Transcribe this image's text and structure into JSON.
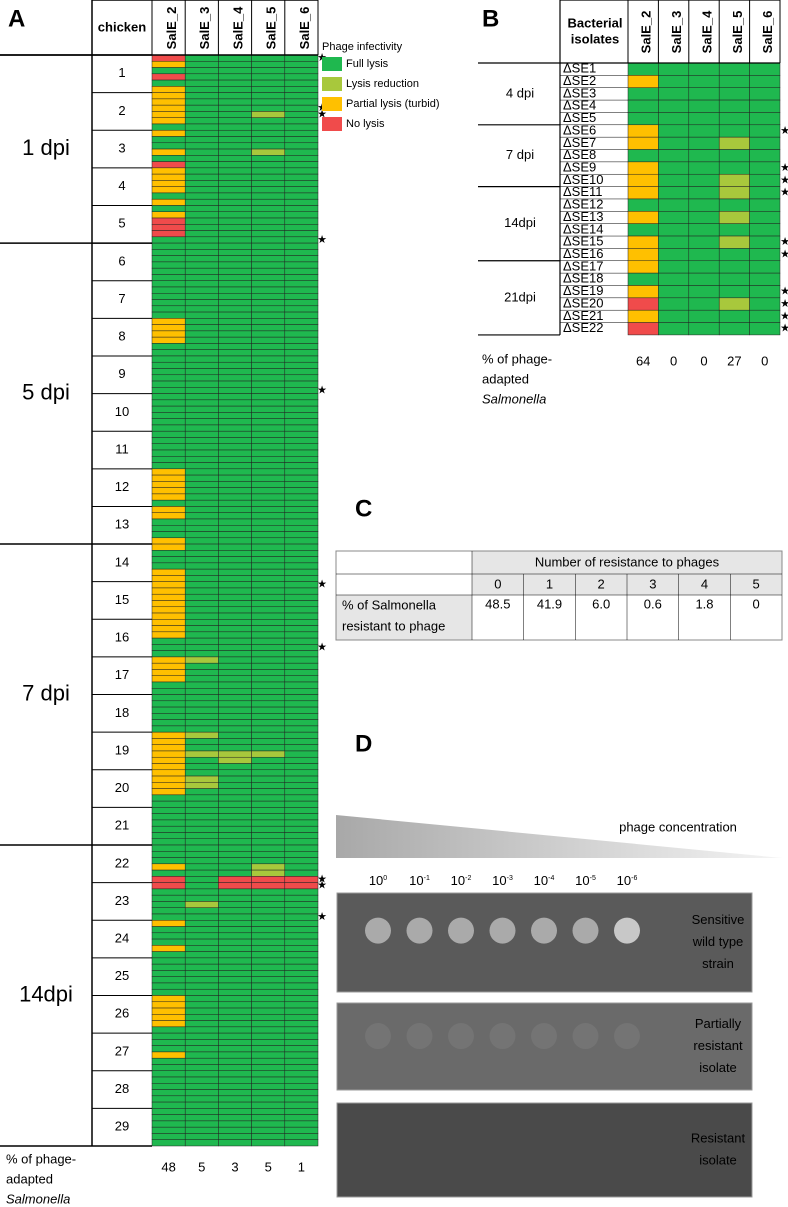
{
  "panel_a": {
    "label": "A",
    "row_header": "chicken",
    "columns": [
      "SalE_2",
      "SalE_3",
      "SalE_4",
      "SalE_5",
      "SalE_6"
    ],
    "legend": {
      "title": "Phage infectivity",
      "items": [
        {
          "name": "Full lysis",
          "color": "#1fb84f"
        },
        {
          "name": "Lysis reduction",
          "color": "#a8c83c"
        },
        {
          "name": "Partial lysis (turbid)",
          "color": "#ffc000"
        },
        {
          "name": "No lysis",
          "color": "#f04b4b"
        }
      ]
    },
    "groups": [
      {
        "label": "1 dpi",
        "chickens": [
          "1",
          "2",
          "3",
          "4",
          "5"
        ]
      },
      {
        "label": "5 dpi",
        "chickens": [
          "6",
          "7",
          "8",
          "9",
          "10",
          "11",
          "12",
          "13"
        ]
      },
      {
        "label": "7 dpi",
        "chickens": [
          "14",
          "15",
          "16",
          "17",
          "18",
          "19",
          "20",
          "21"
        ]
      },
      {
        "label": "14dpi",
        "chickens": [
          "22",
          "23",
          "24",
          "25",
          "26",
          "27",
          "28",
          "29"
        ]
      }
    ],
    "rows": [
      [
        3,
        0,
        0,
        0,
        0
      ],
      [
        2,
        0,
        0,
        0,
        0
      ],
      [
        0,
        0,
        0,
        0,
        0
      ],
      [
        3,
        0,
        0,
        0,
        0
      ],
      [
        0,
        0,
        0,
        0,
        0
      ],
      [
        2,
        0,
        0,
        0,
        0
      ],
      [
        2,
        0,
        0,
        0,
        0
      ],
      [
        2,
        0,
        0,
        0,
        0
      ],
      [
        2,
        0,
        0,
        0,
        0
      ],
      [
        2,
        0,
        0,
        1,
        0
      ],
      [
        2,
        0,
        0,
        0,
        0
      ],
      [
        0,
        0,
        0,
        0,
        0
      ],
      [
        2,
        0,
        0,
        0,
        0
      ],
      [
        0,
        0,
        0,
        0,
        0
      ],
      [
        0,
        0,
        0,
        0,
        0
      ],
      [
        2,
        0,
        0,
        1,
        0
      ],
      [
        0,
        0,
        0,
        0,
        0
      ],
      [
        3,
        0,
        0,
        0,
        0
      ],
      [
        2,
        0,
        0,
        0,
        0
      ],
      [
        2,
        0,
        0,
        0,
        0
      ],
      [
        2,
        0,
        0,
        0,
        0
      ],
      [
        2,
        0,
        0,
        0,
        0
      ],
      [
        0,
        0,
        0,
        0,
        0
      ],
      [
        2,
        0,
        0,
        0,
        0
      ],
      [
        0,
        0,
        0,
        0,
        0
      ],
      [
        2,
        0,
        0,
        0,
        0
      ],
      [
        3,
        0,
        0,
        0,
        0
      ],
      [
        3,
        0,
        0,
        0,
        0
      ],
      [
        3,
        0,
        0,
        0,
        0
      ],
      [
        0,
        0,
        0,
        0,
        0
      ],
      [
        0,
        0,
        0,
        0,
        0
      ],
      [
        0,
        0,
        0,
        0,
        0
      ],
      [
        0,
        0,
        0,
        0,
        0
      ],
      [
        0,
        0,
        0,
        0,
        0
      ],
      [
        0,
        0,
        0,
        0,
        0
      ],
      [
        0,
        0,
        0,
        0,
        0
      ],
      [
        0,
        0,
        0,
        0,
        0
      ],
      [
        0,
        0,
        0,
        0,
        0
      ],
      [
        0,
        0,
        0,
        0,
        0
      ],
      [
        0,
        0,
        0,
        0,
        0
      ],
      [
        0,
        0,
        0,
        0,
        0
      ],
      [
        0,
        0,
        0,
        0,
        0
      ],
      [
        2,
        0,
        0,
        0,
        0
      ],
      [
        2,
        0,
        0,
        0,
        0
      ],
      [
        2,
        0,
        0,
        0,
        0
      ],
      [
        2,
        0,
        0,
        0,
        0
      ],
      [
        0,
        0,
        0,
        0,
        0
      ],
      [
        0,
        0,
        0,
        0,
        0
      ],
      [
        0,
        0,
        0,
        0,
        0
      ],
      [
        0,
        0,
        0,
        0,
        0
      ],
      [
        0,
        0,
        0,
        0,
        0
      ],
      [
        0,
        0,
        0,
        0,
        0
      ],
      [
        0,
        0,
        0,
        0,
        0
      ],
      [
        0,
        0,
        0,
        0,
        0
      ],
      [
        0,
        0,
        0,
        0,
        0
      ],
      [
        0,
        0,
        0,
        0,
        0
      ],
      [
        0,
        0,
        0,
        0,
        0
      ],
      [
        0,
        0,
        0,
        0,
        0
      ],
      [
        0,
        0,
        0,
        0,
        0
      ],
      [
        0,
        0,
        0,
        0,
        0
      ],
      [
        0,
        0,
        0,
        0,
        0
      ],
      [
        0,
        0,
        0,
        0,
        0
      ],
      [
        0,
        0,
        0,
        0,
        0
      ],
      [
        0,
        0,
        0,
        0,
        0
      ],
      [
        0,
        0,
        0,
        0,
        0
      ],
      [
        0,
        0,
        0,
        0,
        0
      ],
      [
        2,
        0,
        0,
        0,
        0
      ],
      [
        2,
        0,
        0,
        0,
        0
      ],
      [
        2,
        0,
        0,
        0,
        0
      ],
      [
        2,
        0,
        0,
        0,
        0
      ],
      [
        2,
        0,
        0,
        0,
        0
      ],
      [
        0,
        0,
        0,
        0,
        0
      ],
      [
        2,
        0,
        0,
        0,
        0
      ],
      [
        2,
        0,
        0,
        0,
        0
      ],
      [
        0,
        0,
        0,
        0,
        0
      ],
      [
        0,
        0,
        0,
        0,
        0
      ],
      [
        0,
        0,
        0,
        0,
        0
      ],
      [
        2,
        0,
        0,
        0,
        0
      ],
      [
        2,
        0,
        0,
        0,
        0
      ],
      [
        0,
        0,
        0,
        0,
        0
      ],
      [
        0,
        0,
        0,
        0,
        0
      ],
      [
        0,
        0,
        0,
        0,
        0
      ],
      [
        2,
        0,
        0,
        0,
        0
      ],
      [
        2,
        0,
        0,
        0,
        0
      ],
      [
        2,
        0,
        0,
        0,
        0
      ],
      [
        2,
        0,
        0,
        0,
        0
      ],
      [
        2,
        0,
        0,
        0,
        0
      ],
      [
        2,
        0,
        0,
        0,
        0
      ],
      [
        2,
        0,
        0,
        0,
        0
      ],
      [
        2,
        0,
        0,
        0,
        0
      ],
      [
        2,
        0,
        0,
        0,
        0
      ],
      [
        2,
        0,
        0,
        0,
        0
      ],
      [
        2,
        0,
        0,
        0,
        0
      ],
      [
        0,
        0,
        0,
        0,
        0
      ],
      [
        0,
        0,
        0,
        0,
        0
      ],
      [
        0,
        0,
        0,
        0,
        0
      ],
      [
        2,
        1,
        0,
        0,
        0
      ],
      [
        2,
        0,
        0,
        0,
        0
      ],
      [
        2,
        0,
        0,
        0,
        0
      ],
      [
        2,
        0,
        0,
        0,
        0
      ],
      [
        0,
        0,
        0,
        0,
        0
      ],
      [
        0,
        0,
        0,
        0,
        0
      ],
      [
        0,
        0,
        0,
        0,
        0
      ],
      [
        0,
        0,
        0,
        0,
        0
      ],
      [
        0,
        0,
        0,
        0,
        0
      ],
      [
        0,
        0,
        0,
        0,
        0
      ],
      [
        0,
        0,
        0,
        0,
        0
      ],
      [
        0,
        0,
        0,
        0,
        0
      ],
      [
        2,
        1,
        0,
        0,
        0
      ],
      [
        2,
        0,
        0,
        0,
        0
      ],
      [
        2,
        0,
        0,
        0,
        0
      ],
      [
        2,
        1,
        1,
        1,
        0
      ],
      [
        2,
        0,
        1,
        0,
        0
      ],
      [
        2,
        0,
        0,
        0,
        0
      ],
      [
        2,
        0,
        0,
        0,
        0
      ],
      [
        2,
        1,
        0,
        0,
        0
      ],
      [
        2,
        1,
        0,
        0,
        0
      ],
      [
        2,
        0,
        0,
        0,
        0
      ],
      [
        0,
        0,
        0,
        0,
        0
      ],
      [
        0,
        0,
        0,
        0,
        0
      ],
      [
        0,
        0,
        0,
        0,
        0
      ],
      [
        0,
        0,
        0,
        0,
        0
      ],
      [
        0,
        0,
        0,
        0,
        0
      ],
      [
        0,
        0,
        0,
        0,
        0
      ],
      [
        0,
        0,
        0,
        0,
        0
      ],
      [
        0,
        0,
        0,
        0,
        0
      ],
      [
        0,
        0,
        0,
        0,
        0
      ],
      [
        0,
        0,
        0,
        0,
        0
      ],
      [
        0,
        0,
        0,
        0,
        0
      ],
      [
        2,
        0,
        0,
        1,
        0
      ],
      [
        0,
        0,
        0,
        1,
        0
      ],
      [
        3,
        0,
        3,
        3,
        3
      ],
      [
        3,
        0,
        3,
        3,
        3
      ],
      [
        0,
        0,
        0,
        0,
        0
      ],
      [
        0,
        0,
        0,
        0,
        0
      ],
      [
        0,
        1,
        0,
        0,
        0
      ],
      [
        0,
        0,
        0,
        0,
        0
      ],
      [
        0,
        0,
        0,
        0,
        0
      ],
      [
        2,
        0,
        0,
        0,
        0
      ],
      [
        0,
        0,
        0,
        0,
        0
      ],
      [
        0,
        0,
        0,
        0,
        0
      ],
      [
        0,
        0,
        0,
        0,
        0
      ],
      [
        2,
        0,
        0,
        0,
        0
      ],
      [
        0,
        0,
        0,
        0,
        0
      ],
      [
        0,
        0,
        0,
        0,
        0
      ],
      [
        0,
        0,
        0,
        0,
        0
      ],
      [
        0,
        0,
        0,
        0,
        0
      ],
      [
        0,
        0,
        0,
        0,
        0
      ],
      [
        0,
        0,
        0,
        0,
        0
      ],
      [
        0,
        0,
        0,
        0,
        0
      ],
      [
        2,
        0,
        0,
        0,
        0
      ],
      [
        2,
        0,
        0,
        0,
        0
      ],
      [
        2,
        0,
        0,
        0,
        0
      ],
      [
        2,
        0,
        0,
        0,
        0
      ],
      [
        2,
        0,
        0,
        0,
        0
      ],
      [
        0,
        0,
        0,
        0,
        0
      ],
      [
        0,
        0,
        0,
        0,
        0
      ],
      [
        0,
        0,
        0,
        0,
        0
      ],
      [
        0,
        0,
        0,
        0,
        0
      ],
      [
        2,
        0,
        0,
        0,
        0
      ],
      [
        0,
        0,
        0,
        0,
        0
      ],
      [
        0,
        0,
        0,
        0,
        0
      ],
      [
        0,
        0,
        0,
        0,
        0
      ],
      [
        0,
        0,
        0,
        0,
        0
      ],
      [
        0,
        0,
        0,
        0,
        0
      ],
      [
        0,
        0,
        0,
        0,
        0
      ],
      [
        0,
        0,
        0,
        0,
        0
      ],
      [
        0,
        0,
        0,
        0,
        0
      ],
      [
        0,
        0,
        0,
        0,
        0
      ],
      [
        0,
        0,
        0,
        0,
        0
      ],
      [
        0,
        0,
        0,
        0,
        0
      ],
      [
        0,
        0,
        0,
        0,
        0
      ],
      [
        0,
        0,
        0,
        0,
        0
      ],
      [
        0,
        0,
        0,
        0,
        0
      ]
    ],
    "star": "★",
    "star_rows": [
      0,
      8,
      9,
      29,
      53,
      84,
      94,
      131,
      132,
      137
    ],
    "footer": {
      "label_lines": [
        "% of phage-",
        "adapted",
        "Salmonella"
      ],
      "values": [
        48,
        5,
        3,
        5,
        1
      ]
    }
  },
  "panel_b": {
    "label": "B",
    "header": [
      "Bacterial",
      "isolates"
    ],
    "columns": [
      "SalE_2",
      "SalE_3",
      "SalE_4",
      "SalE_5",
      "SalE_6"
    ],
    "groups": [
      {
        "label": "4 dpi",
        "count": 5
      },
      {
        "label": "7 dpi",
        "count": 5
      },
      {
        "label": "14dpi",
        "count": 6
      },
      {
        "label": "21dpi",
        "count": 6
      }
    ],
    "isolates": [
      "ΔSE1",
      "ΔSE2",
      "ΔSE3",
      "ΔSE4",
      "ΔSE5",
      "ΔSE6",
      "ΔSE7",
      "ΔSE8",
      "ΔSE9",
      "ΔSE10",
      "ΔSE11",
      "ΔSE12",
      "ΔSE13",
      "ΔSE14",
      "ΔSE15",
      "ΔSE16",
      "ΔSE17",
      "ΔSE18",
      "ΔSE19",
      "ΔSE20",
      "ΔSE21",
      "ΔSE22"
    ],
    "rows": [
      [
        0,
        0,
        0,
        0,
        0
      ],
      [
        2,
        0,
        0,
        0,
        0
      ],
      [
        0,
        0,
        0,
        0,
        0
      ],
      [
        0,
        0,
        0,
        0,
        0
      ],
      [
        0,
        0,
        0,
        0,
        0
      ],
      [
        2,
        0,
        0,
        0,
        0
      ],
      [
        2,
        0,
        0,
        1,
        0
      ],
      [
        0,
        0,
        0,
        0,
        0
      ],
      [
        2,
        0,
        0,
        0,
        0
      ],
      [
        2,
        0,
        0,
        1,
        0
      ],
      [
        2,
        0,
        0,
        1,
        0
      ],
      [
        0,
        0,
        0,
        0,
        0
      ],
      [
        2,
        0,
        0,
        1,
        0
      ],
      [
        0,
        0,
        0,
        0,
        0
      ],
      [
        2,
        0,
        0,
        1,
        0
      ],
      [
        2,
        0,
        0,
        0,
        0
      ],
      [
        2,
        0,
        0,
        0,
        0
      ],
      [
        0,
        0,
        0,
        0,
        0
      ],
      [
        2,
        0,
        0,
        0,
        0
      ],
      [
        3,
        0,
        0,
        1,
        0
      ],
      [
        2,
        0,
        0,
        0,
        0
      ],
      [
        3,
        0,
        0,
        0,
        0
      ]
    ],
    "star_rows": [
      5,
      8,
      9,
      10,
      14,
      15,
      18,
      19,
      20,
      21
    ],
    "footer": {
      "label_lines": [
        "% of phage-",
        "adapted",
        "Salmonella"
      ],
      "values": [
        64,
        0,
        0,
        27,
        0
      ]
    }
  },
  "panel_c": {
    "label": "C",
    "header": "Number of resistance to phages",
    "counts": [
      "0",
      "1",
      "2",
      "3",
      "4",
      "5"
    ],
    "row_label": [
      "% of Salmonella",
      "resistant to phage"
    ],
    "values": [
      "48.5",
      "41.9",
      "6.0",
      "0.6",
      "1.8",
      "0"
    ]
  },
  "panel_d": {
    "label": "D",
    "gradient_label": "phage concentration",
    "dilutions": [
      {
        "base": "10",
        "exp": "0"
      },
      {
        "base": "10",
        "exp": "-1"
      },
      {
        "base": "10",
        "exp": "-2"
      },
      {
        "base": "10",
        "exp": "-3"
      },
      {
        "base": "10",
        "exp": "-4"
      },
      {
        "base": "10",
        "exp": "-5"
      },
      {
        "base": "10",
        "exp": "-6"
      }
    ],
    "plates": [
      {
        "label_lines": [
          "Sensitive",
          "wild type",
          "strain"
        ]
      },
      {
        "label_lines": [
          "Partially",
          "resistant",
          "isolate"
        ]
      },
      {
        "label_lines": [
          "Resistant",
          "isolate"
        ]
      }
    ]
  }
}
